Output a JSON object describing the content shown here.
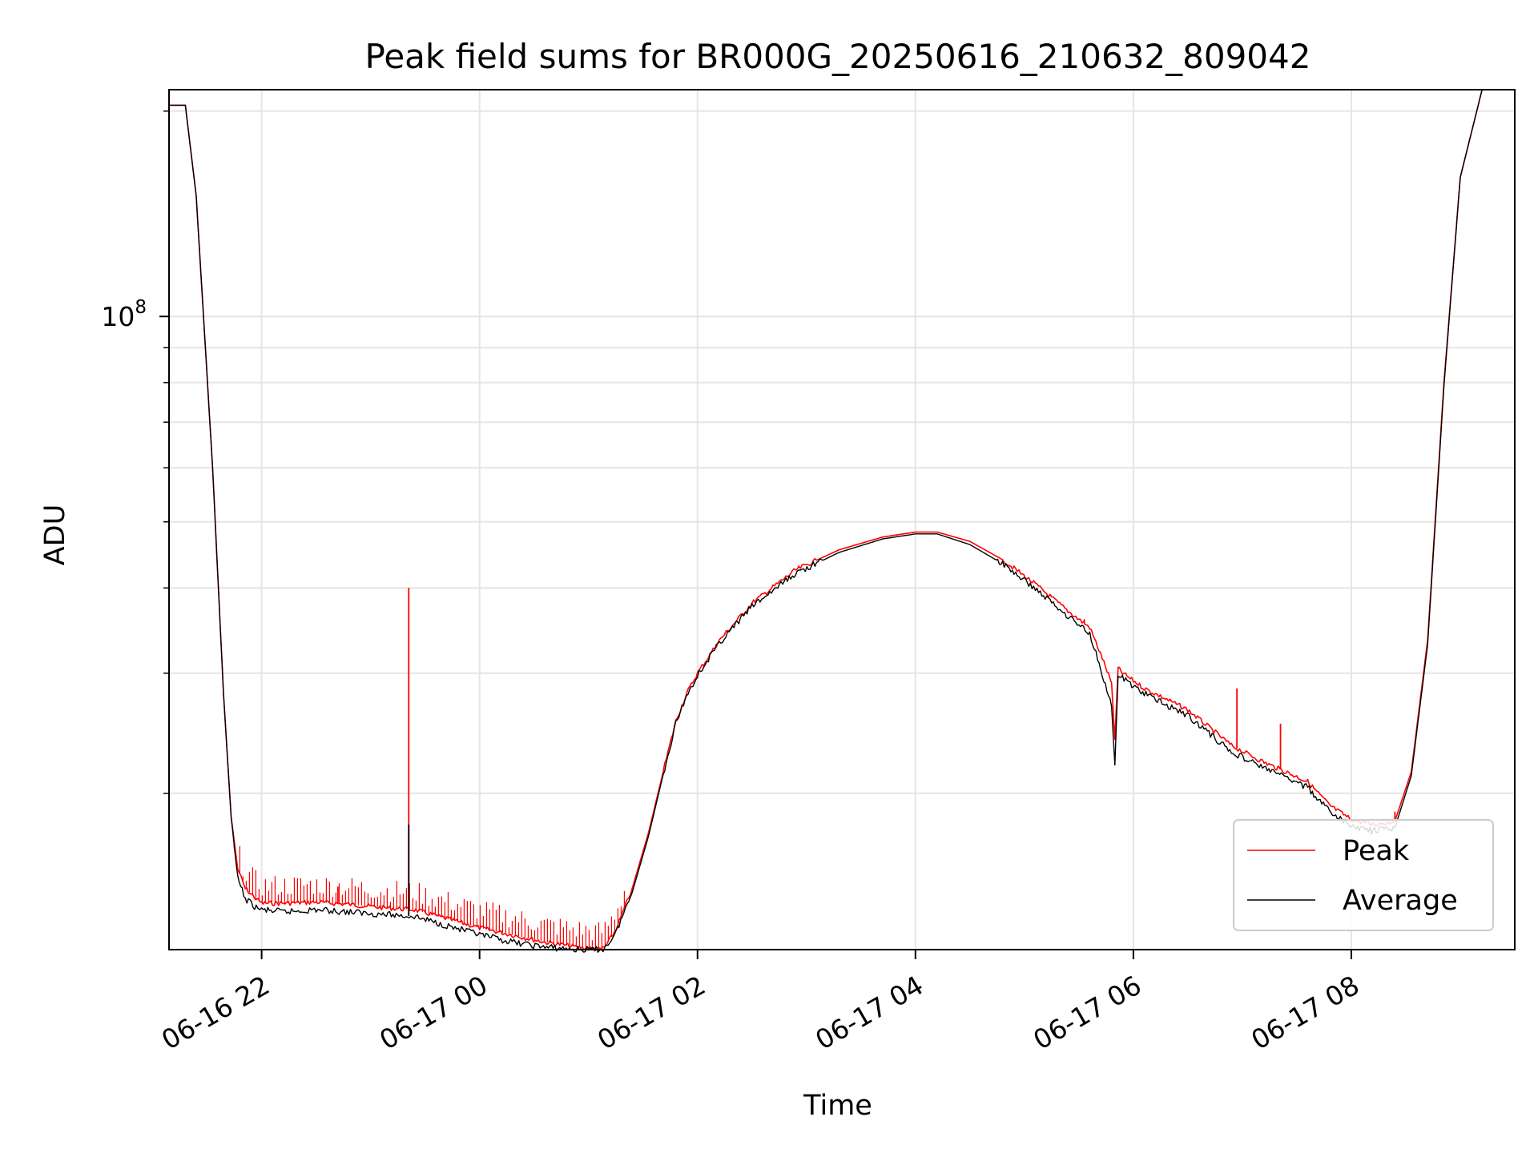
{
  "chart_data": {
    "type": "line",
    "title": "Peak field sums for BR000G_20250616_210632_809042",
    "xlabel": "Time",
    "ylabel": "ADU",
    "yscale": "log",
    "x_unit": "hours since 2025-06-16 00:00",
    "xlim": [
      21.15,
      33.5
    ],
    "ylim": [
      11800000,
      215000000
    ],
    "grid": true,
    "legend": "lower-right",
    "x_ticks": [
      {
        "value": 22,
        "label": "06-16 22"
      },
      {
        "value": 24,
        "label": "06-17 00"
      },
      {
        "value": 26,
        "label": "06-17 02"
      },
      {
        "value": 28,
        "label": "06-17 04"
      },
      {
        "value": 30,
        "label": "06-17 06"
      },
      {
        "value": 32,
        "label": "06-17 08"
      }
    ],
    "y_ticks": [
      {
        "value": 100000000,
        "base": "10",
        "exp": "8"
      }
    ],
    "y_minor_ticks": [
      20000000,
      30000000,
      40000000,
      50000000,
      60000000,
      70000000,
      80000000,
      90000000,
      200000000
    ],
    "series": [
      {
        "name": "Peak",
        "color": "#ff0000",
        "x": [
          21.15,
          21.25,
          21.3,
          21.4,
          21.55,
          21.65,
          21.72,
          21.78,
          21.85,
          21.95,
          22.0,
          22.2,
          22.5,
          22.8,
          23.1,
          23.4,
          23.7,
          24.0,
          24.3,
          24.6,
          24.9,
          25.1,
          25.15,
          25.25,
          25.4,
          25.55,
          25.7,
          25.8,
          25.9,
          26.0,
          26.2,
          26.5,
          26.9,
          27.3,
          27.7,
          28.0,
          28.2,
          28.5,
          28.8,
          29.1,
          29.4,
          29.6,
          29.7,
          29.8,
          29.83,
          29.86,
          29.9,
          30.1,
          30.5,
          30.9,
          31.2,
          31.4,
          31.6,
          31.8,
          32.0,
          32.2,
          32.4,
          32.55,
          32.7,
          32.85,
          33.0,
          33.2,
          33.3,
          33.5
        ],
        "values": [
          204000000,
          204000000,
          204000000,
          150000000,
          60000000,
          28000000,
          18500000,
          15500000,
          14500000,
          14000000,
          13800000,
          13800000,
          13850000,
          13750000,
          13600000,
          13500000,
          13100000,
          12700000,
          12400000,
          12100000,
          11900000,
          11800000,
          11900000,
          12600000,
          14500000,
          17500000,
          22000000,
          25500000,
          28000000,
          30000000,
          33500000,
          38000000,
          42500000,
          45500000,
          47500000,
          48300000,
          48300000,
          46800000,
          44000000,
          40500000,
          37000000,
          35000000,
          32000000,
          29000000,
          24000000,
          30500000,
          30000000,
          28500000,
          26500000,
          23500000,
          22200000,
          21500000,
          20800000,
          19200000,
          18300000,
          18000000,
          18200000,
          21500000,
          33500000,
          80000000,
          160000000,
          215000000,
          215000000,
          215000000
        ],
        "spikes": [
          {
            "x": 23.35,
            "value": 40000000
          },
          {
            "x": 21.75,
            "value": 16600000
          },
          {
            "x": 22.7,
            "value": 14600000
          },
          {
            "x": 29.55,
            "value": 36000000
          },
          {
            "x": 30.95,
            "value": 28500000
          },
          {
            "x": 31.35,
            "value": 25300000
          },
          {
            "x": 32.4,
            "value": 18800000
          }
        ]
      },
      {
        "name": "Average",
        "color": "#000000",
        "x": [
          21.15,
          21.25,
          21.3,
          21.4,
          21.55,
          21.65,
          21.72,
          21.78,
          21.85,
          21.95,
          22.0,
          22.2,
          22.5,
          22.8,
          23.1,
          23.4,
          23.7,
          24.0,
          24.3,
          24.6,
          24.9,
          25.1,
          25.15,
          25.25,
          25.4,
          25.55,
          25.7,
          25.8,
          25.9,
          26.0,
          26.2,
          26.5,
          26.9,
          27.3,
          27.7,
          28.0,
          28.2,
          28.5,
          28.8,
          29.1,
          29.4,
          29.6,
          29.7,
          29.8,
          29.83,
          29.86,
          29.9,
          30.1,
          30.5,
          30.9,
          31.2,
          31.4,
          31.6,
          31.8,
          32.0,
          32.2,
          32.4,
          32.55,
          32.7,
          32.85,
          33.0,
          33.2,
          33.3,
          33.5
        ],
        "values": [
          204000000,
          204000000,
          204000000,
          150000000,
          60000000,
          28000000,
          18500000,
          15000000,
          14000000,
          13600000,
          13500000,
          13400000,
          13500000,
          13400000,
          13300000,
          13200000,
          12800000,
          12400000,
          12100000,
          11900000,
          11800000,
          11800000,
          11850000,
          12500000,
          14300000,
          17300000,
          21800000,
          25300000,
          27800000,
          29800000,
          33200000,
          37600000,
          42000000,
          45100000,
          47200000,
          48000000,
          48000000,
          46300000,
          43400000,
          39900000,
          36400000,
          34300000,
          30500000,
          26800000,
          22000000,
          29800000,
          29500000,
          28000000,
          26000000,
          23000000,
          21800000,
          21100000,
          20400000,
          18800000,
          17900000,
          17600000,
          17800000,
          21200000,
          33000000,
          79000000,
          160000000,
          215000000,
          215000000,
          215000000
        ],
        "spikes": [
          {
            "x": 23.35,
            "value": 18000000
          }
        ]
      }
    ]
  }
}
